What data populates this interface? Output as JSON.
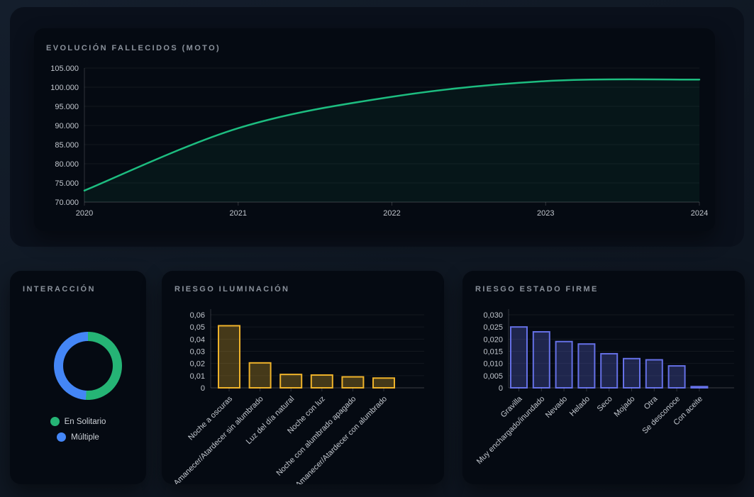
{
  "page": {
    "background": "#0f1722"
  },
  "chart_data": [
    {
      "id": "evolucion_fallecidos_moto",
      "type": "line",
      "title": "EVOLUCIÓN FALLECIDOS (MOTO)",
      "x": [
        2020,
        2021,
        2022,
        2023,
        2024
      ],
      "values": [
        73000,
        89300,
        97500,
        101600,
        102000
      ],
      "ylim": [
        70000,
        105000
      ],
      "ytick_step": 5000,
      "ytick_labels": [
        "70.000",
        "75.000",
        "80.000",
        "85.000",
        "90.000",
        "95.000",
        "100.000",
        "105.000"
      ],
      "xlabel": "",
      "ylabel": "",
      "grid": true,
      "legend_position": "none",
      "line_color": "#1dbd80",
      "fill_color": "rgba(30,190,125,0.07)"
    },
    {
      "id": "interaccion",
      "type": "pie",
      "title": "INTERACCIÓN",
      "donut": true,
      "labels": [
        "En Solitario",
        "Múltiple"
      ],
      "values_pct": [
        51,
        49
      ],
      "colors": [
        "#25b475",
        "#4486f6"
      ],
      "legend_position": "bottom"
    },
    {
      "id": "riesgo_iluminacion",
      "type": "bar",
      "title": "RIESGO ILUMINACIÓN",
      "categories": [
        "Noche a oscuras",
        "Amanecer/Atardecer sin alumbrado",
        "Luz del día natural",
        "Noche con luz",
        "Noche con alumbrado apagado",
        "Amanecer/Atardecer con alumbrado"
      ],
      "values": [
        0.051,
        0.0205,
        0.011,
        0.0105,
        0.009,
        0.008
      ],
      "ylim": [
        0,
        0.06
      ],
      "ytick_step": 0.01,
      "ytick_labels": [
        "0",
        "0,01",
        "0,02",
        "0,03",
        "0,04",
        "0,05",
        "0,06"
      ],
      "grid": true,
      "legend_position": "none",
      "bar_border": "#eeb22a",
      "bar_fill": "rgba(238,178,42,0.28)"
    },
    {
      "id": "riesgo_estado_firme",
      "type": "bar",
      "title": "RIESGO ESTADO FIRME",
      "categories": [
        "Gravilla",
        "Muy enchargado/inundado",
        "Nevado",
        "Helado",
        "Seco",
        "Mojado",
        "Otra",
        "Se desconoce",
        "Con aceite"
      ],
      "values": [
        0.025,
        0.023,
        0.019,
        0.018,
        0.014,
        0.012,
        0.0115,
        0.009,
        0.0005
      ],
      "ylim": [
        0,
        0.03
      ],
      "ytick_step": 0.005,
      "ytick_labels": [
        "0",
        "0,005",
        "0,010",
        "0,015",
        "0,020",
        "0,025",
        "0,030"
      ],
      "grid": true,
      "legend_position": "none",
      "bar_border": "#6570e6",
      "bar_fill": "rgba(101,112,230,0.28)"
    }
  ]
}
